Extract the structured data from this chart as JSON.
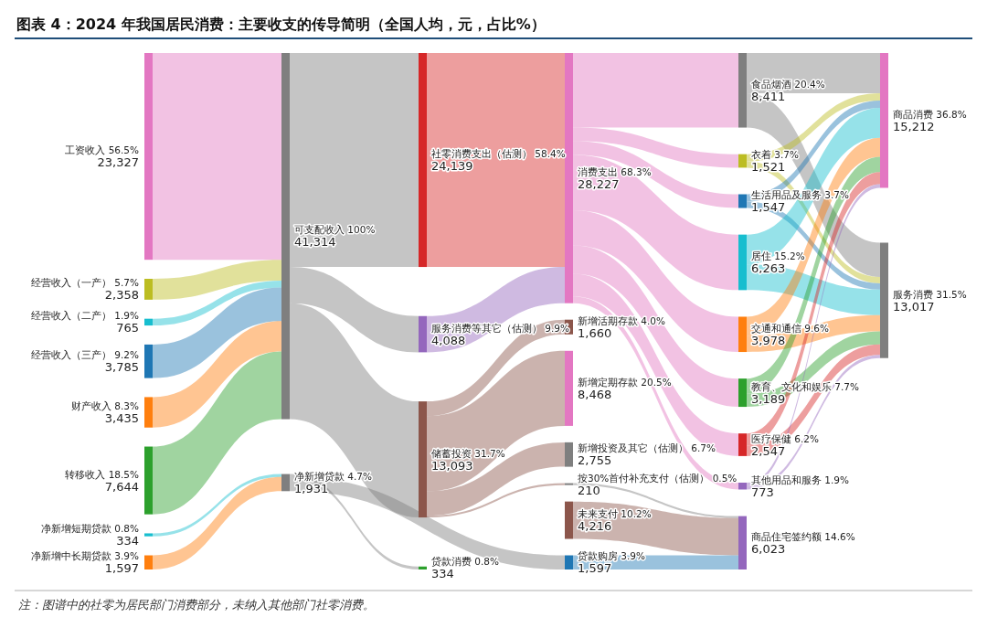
{
  "chart_data": {
    "type": "other",
    "title": "图表 4：2024 年我国居民消费：主要收支的传导简明（全国人均，元，占比%）",
    "categories": [
      "工资收入 56.5%",
      "经营收入（一产） 5.7%",
      "经营收入（二产） 1.9%",
      "经营收入（三产） 9.2%",
      "财产收入 8.3%",
      "转移收入 18.5%",
      "净新增短期贷款 0.8%",
      "净新增中长期贷款 3.9%",
      "可支配收入 100%",
      "净新增贷款 4.7%",
      "社零消费支出（估测） 58.4%",
      "服务消费等其它（估测） 9.9%",
      "储蓄投资 31.7%",
      "贷款消费 0.8%",
      "消费支出 68.3%",
      "新增活期存款 4.0%",
      "新增定期存款 20.5%",
      "新增投资及其它（估测） 6.7%",
      "按30%首付补充支付（估测） 0.5%",
      "未来支付 10.2%",
      "贷款购房 3.9%",
      "食品烟酒 20.4%",
      "衣着 3.7%",
      "生活用品及服务 3.7%",
      "居住 15.2%",
      "交通和通信 9.6%",
      "教育、文化和娱乐 7.7%",
      "医疗保健 6.2%",
      "其他用品和服务 1.9%",
      "商品住宅签约额 14.6%",
      "商品消费 36.8%",
      "服务消费 31.5%"
    ],
    "values": [
      23327,
      2358,
      765,
      3785,
      3435,
      7644,
      334,
      1597,
      41314,
      1931,
      24139,
      4088,
      13093,
      334,
      28227,
      1660,
      8468,
      2755,
      210,
      4216,
      1597,
      8411,
      1521,
      1547,
      6263,
      3978,
      3189,
      2547,
      773,
      6023,
      15212,
      13017
    ],
    "colors": [
      "#e377c2",
      "#bcbd22",
      "#17becf",
      "#1f77b4",
      "#ff7f0e",
      "#2ca02c",
      "#17becf",
      "#ff7f0e",
      "#7f7f7f",
      "#7f7f7f",
      "#d62728",
      "#9467bd",
      "#8c564b",
      "#2ca02c",
      "#e377c2",
      "#8c564b",
      "#e377c2",
      "#7f7f7f",
      "#7f7f7f",
      "#8c564b",
      "#1f77b4",
      "#7f7f7f",
      "#bcbd22",
      "#1f77b4",
      "#17becf",
      "#ff7f0e",
      "#2ca02c",
      "#d62728",
      "#9467bd",
      "#9467bd",
      "#e377c2",
      "#7f7f7f"
    ],
    "value_labels": [
      "23,327",
      "2,358",
      "765",
      "3,785",
      "3,435",
      "7,644",
      "334",
      "1,597",
      "41,314",
      "1,931",
      "24,139",
      "4,088",
      "13,093",
      "334",
      "28,227",
      "1,660",
      "8,468",
      "2,755",
      "210",
      "4,216",
      "1,597",
      "8,411",
      "1,521",
      "1,547",
      "6,263",
      "3,978",
      "3,189",
      "2,547",
      "773",
      "6,023",
      "15,212",
      "13,017"
    ],
    "annotations": [
      "注：图谱中的社零为居民部门消费部分，未纳入其他部门社零消费。"
    ]
  }
}
